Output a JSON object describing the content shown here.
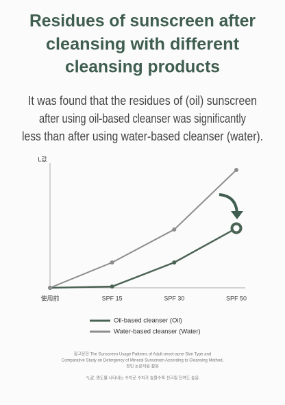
{
  "header": {
    "title_lines": [
      "Residues of sunscreen after",
      "cleansing with different",
      "cleansing products"
    ]
  },
  "description_lines": [
    "It was found that the residues of (oil) sunscreen",
    "after using oil-based cleanser was significantly",
    "less than after using water-based cleanser (water)."
  ],
  "chart_data": {
    "type": "line",
    "y_label": "L값",
    "categories": [
      "使用前",
      "SPF 15",
      "SPF 30",
      "SPF 50"
    ],
    "series": [
      {
        "name": "Oil-based cleanser (Oil)",
        "color": "#4b6355",
        "values": [
          0,
          1,
          20,
          47
        ]
      },
      {
        "name": "Water-based cleanser (Water)",
        "color": "#8c8c8c",
        "values": [
          0,
          20,
          46,
          93
        ]
      }
    ],
    "ylim": [
      0,
      100
    ]
  },
  "footnote": {
    "lines": [
      "참고문헌 The Sunscreen Usage Patterns of Adult-onset-acne Skin Type and",
      "Comparative Study on Detergency of Mineral Sunscreen According to Cleansing Method,",
      "정인 논문자료 활용"
    ],
    "note": "*L값: 명도를 나타내는 수치로 수치가 높을수록 선크림 잔여도 높음"
  }
}
